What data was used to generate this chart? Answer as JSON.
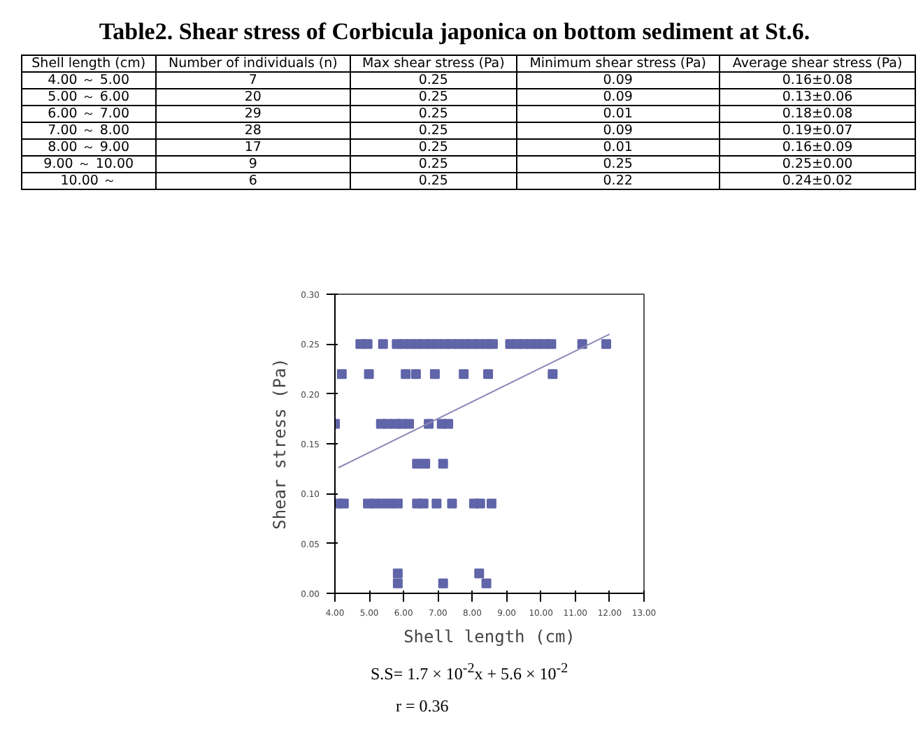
{
  "chart_data": [
    {
      "type": "other",
      "title": "Table2.    Shear stress of Corbicula japonica on bottom sediment at St.6.",
      "categories": [
        "Shell length (cm)",
        "Number of individuals (n)",
        "Max shear stress (Pa)",
        "Minimum shear stress (Pa)",
        "Average shear stress (Pa)"
      ],
      "annotations": [
        "4.00 ～ 5.00",
        "7",
        "0.25",
        "0.09",
        "0.16±0.08",
        "5.00 ～ 6.00",
        "20",
        "0.25",
        "0.09",
        "0.13±0.06",
        "6.00 ～ 7.00",
        "29",
        "0.25",
        "0.01",
        "0.18±0.08",
        "7.00 ～ 8.00",
        "28",
        "0.25",
        "0.09",
        "0.19±0.07",
        "8.00 ～ 9.00",
        "17",
        "0.25",
        "0.01",
        "0.16±0.09",
        "9.00 ～ 10.00",
        "9",
        "0.25",
        "0.25",
        "0.25±0.00",
        "10.00 ～",
        "6",
        "0.25",
        "0.22",
        "0.24±0.02"
      ]
    },
    {
      "type": "scatter",
      "xlabel": "Shell length (cm)",
      "ylabel": "Shear stress (Pa)",
      "marker": "square",
      "grid": false,
      "xlim": [
        4,
        13
      ],
      "ylim": [
        0,
        0.3
      ],
      "xticks": [
        {
          "value": 4,
          "label": "4.00"
        },
        {
          "value": 5,
          "label": "5.00"
        },
        {
          "value": 6,
          "label": "6.00"
        },
        {
          "value": 7,
          "label": "7.00"
        },
        {
          "value": 8,
          "label": "8.00"
        },
        {
          "value": 9,
          "label": "9.00"
        },
        {
          "value": 10,
          "label": "10.00"
        },
        {
          "value": 11,
          "label": "11.00"
        },
        {
          "value": 12,
          "label": "12.00"
        },
        {
          "value": 13,
          "label": "13.00"
        }
      ],
      "yticks": [
        {
          "value": 0,
          "label": "0.00"
        },
        {
          "value": 0.05,
          "label": "0.05"
        },
        {
          "value": 0.1,
          "label": "0.10"
        },
        {
          "value": 0.15,
          "label": "0.15"
        },
        {
          "value": 0.2,
          "label": "0.20"
        },
        {
          "value": 0.25,
          "label": "0.25"
        },
        {
          "value": 0.3,
          "label": "0.30"
        }
      ],
      "series": [
        {
          "color": "#6064a8",
          "x": [
            4.74,
            4.95,
            5.4,
            5.8,
            6.0,
            6.2,
            6.4,
            6.6,
            6.8,
            7.0,
            7.2,
            7.4,
            7.6,
            7.8,
            8.0,
            8.2,
            8.4,
            8.6,
            9.1,
            9.3,
            9.5,
            9.7,
            9.9,
            10.1,
            10.3,
            11.2,
            11.9,
            4.2,
            4.99,
            6.06,
            6.36,
            6.91,
            7.75,
            8.46,
            10.34,
            4.0,
            5.34,
            5.53,
            5.76,
            5.95,
            6.16,
            6.73,
            7.11,
            7.3,
            6.39,
            6.63,
            7.15,
            4.1,
            4.26,
            4.96,
            5.16,
            5.38,
            5.61,
            5.83,
            6.39,
            6.58,
            6.96,
            7.41,
            8.05,
            8.23,
            8.56,
            5.83,
            8.2,
            5.83,
            7.15,
            8.41
          ],
          "values": [
            0.25,
            0.25,
            0.25,
            0.25,
            0.25,
            0.25,
            0.25,
            0.25,
            0.25,
            0.25,
            0.25,
            0.25,
            0.25,
            0.25,
            0.25,
            0.25,
            0.25,
            0.25,
            0.25,
            0.25,
            0.25,
            0.25,
            0.25,
            0.25,
            0.25,
            0.25,
            0.25,
            0.22,
            0.22,
            0.22,
            0.22,
            0.22,
            0.22,
            0.22,
            0.22,
            0.17,
            0.17,
            0.17,
            0.17,
            0.17,
            0.17,
            0.17,
            0.17,
            0.17,
            0.13,
            0.13,
            0.13,
            0.09,
            0.09,
            0.09,
            0.09,
            0.09,
            0.09,
            0.09,
            0.09,
            0.09,
            0.09,
            0.09,
            0.09,
            0.09,
            0.09,
            0.02,
            0.02,
            0.01,
            0.01,
            0.01
          ]
        },
        {
          "type": "line",
          "marker": "none",
          "color": "#8c88b8",
          "x": [
            4.1,
            12.0
          ],
          "values": [
            0.126,
            0.26
          ]
        }
      ],
      "annotations": [
        "S.S= 1.7 × 10$^{-2}$x + 5.6 × 10$^{-2}$",
        "r = 0.36"
      ]
    }
  ]
}
